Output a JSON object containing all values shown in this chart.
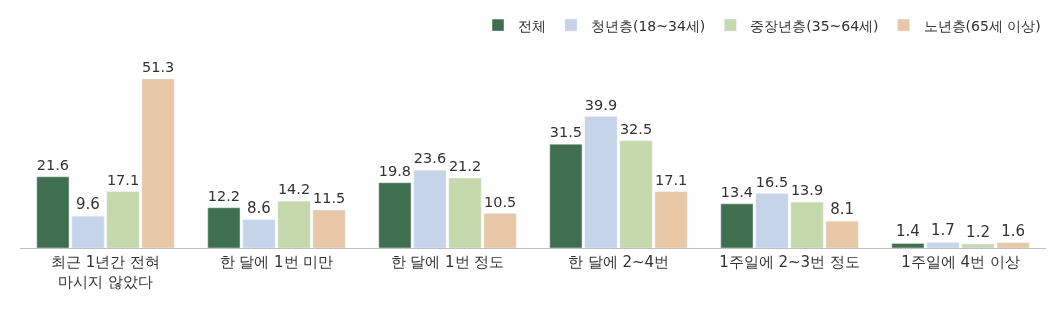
{
  "chart_data": {
    "type": "bar",
    "categories": [
      "최근 1년간 전혀\n마시지 않았다",
      "한 달에 1번 미만",
      "한 달에 1번 정도",
      "한 달에 2~4번",
      "1주일에 2~3번 정도",
      "1주일에 4번 이상"
    ],
    "series": [
      {
        "name": "전체",
        "color": "#3f6f4f",
        "values": [
          21.6,
          12.2,
          19.8,
          31.5,
          13.4,
          1.4
        ]
      },
      {
        "name": "청년층(18~34세)",
        "color": "#c5d4e8",
        "values": [
          9.6,
          8.6,
          23.6,
          39.9,
          16.5,
          1.7
        ]
      },
      {
        "name": "중장년층(35~64세)",
        "color": "#c5d9ad",
        "values": [
          17.1,
          14.2,
          21.2,
          32.5,
          13.9,
          1.2
        ]
      },
      {
        "name": "노년층(65세 이상)",
        "color": "#e9c8a7",
        "values": [
          51.3,
          11.5,
          10.5,
          17.1,
          8.1,
          1.6
        ]
      }
    ],
    "data_labels": true,
    "legend": "top right"
  }
}
